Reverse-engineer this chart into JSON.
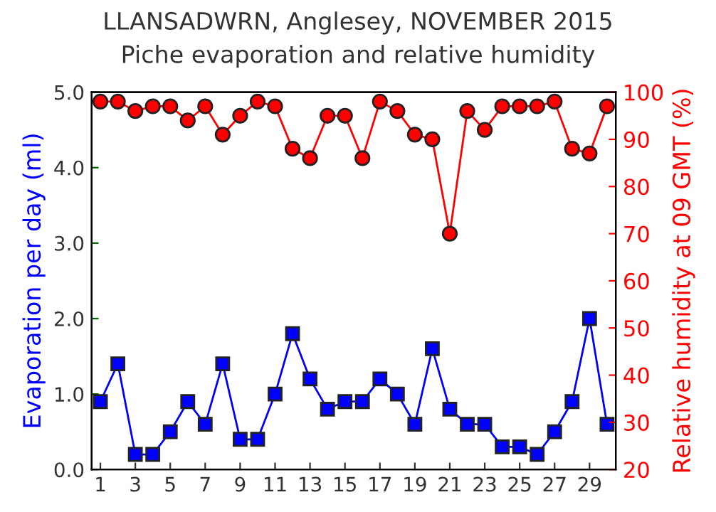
{
  "chart_data": {
    "type": "line",
    "title": "LLANSADWRN, Anglesey, NOVEMBER 2015",
    "subtitle": "Piche evaporation and relative humidity",
    "ylabel": "Evaporation per day (ml)",
    "y2label": "Relative humidity at 09 GMT (%)",
    "x": [
      1,
      2,
      3,
      4,
      5,
      6,
      7,
      8,
      9,
      10,
      11,
      12,
      13,
      14,
      15,
      16,
      17,
      18,
      19,
      20,
      21,
      22,
      23,
      24,
      25,
      26,
      27,
      28,
      29,
      30
    ],
    "xlim": [
      0.5,
      30.5
    ],
    "xticks": [
      1,
      3,
      5,
      7,
      9,
      11,
      13,
      15,
      17,
      19,
      21,
      23,
      25,
      27,
      29
    ],
    "ylim": [
      0,
      5
    ],
    "yticks": [
      {
        "value": 0,
        "label": "0.0"
      },
      {
        "value": 1,
        "label": "1.0"
      },
      {
        "value": 2,
        "label": "2.0"
      },
      {
        "value": 3,
        "label": "3.0"
      },
      {
        "value": 4,
        "label": "4.0"
      },
      {
        "value": 5,
        "label": "5.0"
      }
    ],
    "y2lim": [
      20,
      100
    ],
    "y2ticks": [
      20,
      30,
      40,
      50,
      60,
      70,
      80,
      90,
      100
    ],
    "grid": false,
    "legend": false,
    "series": [
      {
        "color": "#0000ff",
        "marker": "square",
        "values": [
          0.9,
          1.4,
          0.2,
          0.2,
          0.5,
          0.9,
          0.6,
          1.4,
          0.4,
          0.4,
          1.0,
          1.8,
          1.2,
          0.8,
          0.9,
          0.9,
          1.2,
          1.0,
          0.6,
          1.6,
          0.8,
          0.6,
          0.6,
          0.3,
          0.3,
          0.2,
          0.5,
          0.9,
          2.0,
          0.6
        ]
      },
      {
        "color": "#ff0000",
        "marker": "circle",
        "axis": "y2",
        "values": [
          98,
          98,
          96,
          97,
          97,
          94,
          97,
          91,
          95,
          98,
          97,
          88,
          86,
          95,
          95,
          86,
          98,
          96,
          91,
          90,
          70,
          96,
          92,
          97,
          97,
          97,
          98,
          88,
          87,
          97
        ]
      }
    ]
  }
}
